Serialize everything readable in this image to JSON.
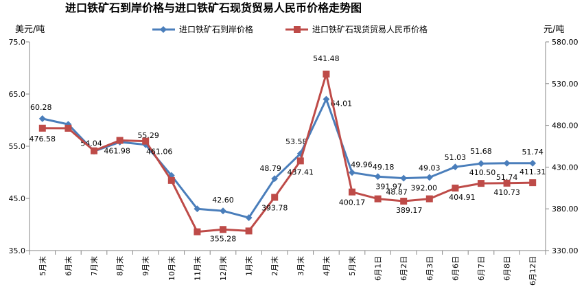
{
  "chart_data": {
    "type": "line",
    "title": "进口铁矿石到岸价格与进口铁矿石现货贸易人民币价格走势图",
    "left_unit": "美元/吨",
    "right_unit": "元/吨",
    "categories": [
      "5月末",
      "6月末",
      "7月末",
      "8月末",
      "9月末",
      "10月末",
      "11月末",
      "12月末",
      "1月末",
      "2月末",
      "3月末",
      "4月末",
      "5月末",
      "6月1日",
      "6月2日",
      "6月3日",
      "6月6日",
      "6月7日",
      "6月8日",
      "6月12日"
    ],
    "y_left": {
      "min": 35,
      "max": 75,
      "ticks": [
        "35.0",
        "45.0",
        "55.0",
        "65.0",
        "75.0"
      ]
    },
    "y_right": {
      "min": 330,
      "max": 580,
      "ticks": [
        "330.00",
        "380.00",
        "430.00",
        "480.00",
        "530.00",
        "580.00"
      ]
    },
    "series": [
      {
        "name": "进口铁矿石到岸价格",
        "axis": "left",
        "color": "#4a7ebb",
        "marker": "diamond",
        "values": [
          60.28,
          59.2,
          54.04,
          55.8,
          55.29,
          49.4,
          43.0,
          42.6,
          41.3,
          48.79,
          53.58,
          64.01,
          49.96,
          49.18,
          48.87,
          49.03,
          51.03,
          51.68,
          51.74,
          51.74
        ],
        "labels": [
          "60.28",
          "",
          "54.04",
          "",
          "55.29",
          "",
          "",
          "42.60",
          "",
          "48.79",
          "53.58",
          "64.01",
          "49.96",
          "49.18",
          "48.87",
          "49.03",
          "51.03",
          "51.68",
          "51.74",
          "51.74"
        ]
      },
      {
        "name": "进口铁矿石现货贸易人民币价格",
        "axis": "right",
        "color": "#be4b48",
        "marker": "square",
        "values": [
          476.58,
          476.5,
          449.5,
          461.98,
          461.06,
          414.0,
          352.5,
          355.28,
          353.5,
          393.78,
          437.41,
          541.48,
          400.17,
          391.97,
          389.17,
          392.0,
          404.91,
          410.5,
          410.73,
          411.31
        ],
        "labels": [
          "476.58",
          "",
          "",
          "461.98",
          "461.06",
          "",
          "",
          "355.28",
          "",
          "393.78",
          "437.41",
          "541.48",
          "400.17",
          "391.97",
          "389.17",
          "392.00",
          "404.91",
          "410.50",
          "410.73",
          "411.31"
        ]
      }
    ],
    "legend_position": "top",
    "grid": false
  }
}
